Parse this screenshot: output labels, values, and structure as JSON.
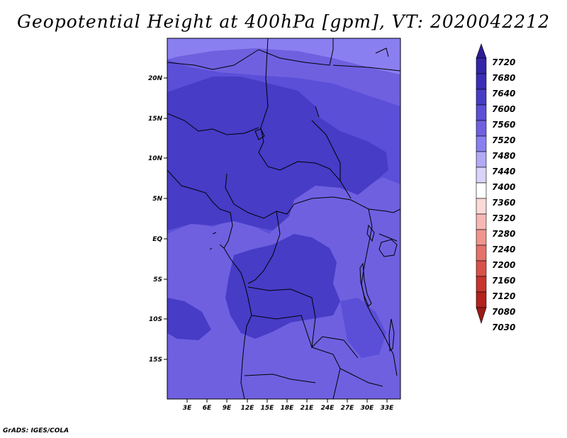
{
  "title": "Geopotential Height at 400hPa [gpm], VT: 2020042212",
  "credit": "GrADS: IGES/COLA",
  "map": {
    "lat_labels": [
      "20N",
      "15N",
      "10N",
      "5N",
      "EQ",
      "5S",
      "10S",
      "15S"
    ],
    "lon_labels": [
      "3E",
      "6E",
      "9E",
      "12E",
      "15E",
      "18E",
      "21E",
      "24E",
      "27E",
      "30E",
      "33E"
    ],
    "fill_colors": {
      "c7520": "#6f60e0",
      "c7560": "#5b4fd8",
      "c7600": "#463cc6",
      "c7480": "#8a7ff0"
    }
  },
  "legend": {
    "levels": [
      "7720",
      "7680",
      "7640",
      "7600",
      "7560",
      "7520",
      "7480",
      "7440",
      "7400",
      "7360",
      "7320",
      "7280",
      "7240",
      "7200",
      "7160",
      "7120",
      "7080",
      "7030"
    ],
    "colors": [
      "#2d1d93",
      "#3326a8",
      "#3a2db8",
      "#463cc6",
      "#5b4fd8",
      "#6f60e0",
      "#8a7ff0",
      "#b2aaf5",
      "#d8d4fa",
      "#ffffff",
      "#fcdad8",
      "#f7b8b3",
      "#f0958e",
      "#e5716b",
      "#d9514b",
      "#c8342e",
      "#b3221d",
      "#9c1a15"
    ]
  }
}
